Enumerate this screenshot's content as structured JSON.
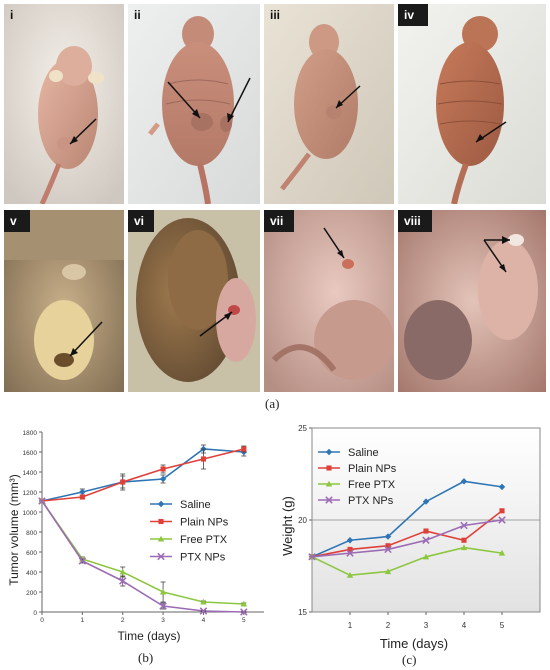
{
  "photos": {
    "top": [
      {
        "label": "i"
      },
      {
        "label": "ii"
      },
      {
        "label": "iii"
      },
      {
        "label": "iv"
      }
    ],
    "bottom": [
      {
        "label": "v"
      },
      {
        "label": "vi"
      },
      {
        "label": "vii"
      },
      {
        "label": "viii"
      }
    ]
  },
  "captions": {
    "a": "(a)",
    "b": "(b)",
    "c": "(c)"
  },
  "chart_data": [
    {
      "type": "line",
      "panel": "b",
      "xlabel": "Time (days)",
      "ylabel": "Tumor volume (mm³)",
      "x": [
        0,
        1,
        2,
        3,
        4,
        5
      ],
      "xlim": [
        0,
        5.5
      ],
      "ylim": [
        0,
        1800
      ],
      "yticks": [
        0,
        200,
        400,
        600,
        800,
        1000,
        1200,
        1400,
        1600,
        1800
      ],
      "grid": false,
      "legend": "center-right",
      "series": [
        {
          "name": "Saline",
          "color": "#2e75b6",
          "marker": "diamond",
          "values": [
            1110,
            1200,
            1300,
            1330,
            1630,
            1600
          ],
          "errors": [
            0,
            30,
            60,
            40,
            40,
            40
          ]
        },
        {
          "name": "Plain NPs",
          "color": "#e0403a",
          "marker": "square",
          "values": [
            1110,
            1150,
            1300,
            1430,
            1530,
            1630
          ],
          "errors": [
            0,
            20,
            80,
            40,
            100,
            30
          ]
        },
        {
          "name": "Free PTX",
          "color": "#8dc63f",
          "marker": "triangle",
          "values": [
            1110,
            530,
            400,
            200,
            100,
            80
          ],
          "errors": [
            0,
            20,
            50,
            100,
            10,
            10
          ]
        },
        {
          "name": "PTX NPs",
          "color": "#9b6bb5",
          "marker": "x",
          "values": [
            1110,
            510,
            310,
            60,
            10,
            0
          ],
          "errors": [
            0,
            20,
            50,
            30,
            5,
            5
          ]
        }
      ]
    },
    {
      "type": "line",
      "panel": "c",
      "xlabel": "Time (days)",
      "ylabel": "Weight (g)",
      "x": [
        0,
        1,
        2,
        3,
        4,
        5
      ],
      "xticks": [
        1,
        2,
        3,
        4,
        5
      ],
      "xlim": [
        0,
        6
      ],
      "ylim": [
        15,
        25
      ],
      "yticks": [
        15,
        20,
        25
      ],
      "grid": true,
      "legend": "top-left",
      "series": [
        {
          "name": "Saline",
          "color": "#2e75b6",
          "marker": "diamond",
          "values": [
            18,
            18.9,
            19.1,
            21,
            22.1,
            21.8
          ]
        },
        {
          "name": "Plain NPs",
          "color": "#e0403a",
          "marker": "square",
          "values": [
            18,
            18.4,
            18.6,
            19.4,
            18.9,
            20.5
          ]
        },
        {
          "name": "Free PTX",
          "color": "#8dc63f",
          "marker": "triangle",
          "values": [
            18,
            17,
            17.2,
            18,
            18.5,
            18.2
          ]
        },
        {
          "name": "PTX NPs",
          "color": "#9b6bb5",
          "marker": "x",
          "values": [
            18,
            18.2,
            18.4,
            18.9,
            19.7,
            20
          ]
        }
      ]
    }
  ]
}
